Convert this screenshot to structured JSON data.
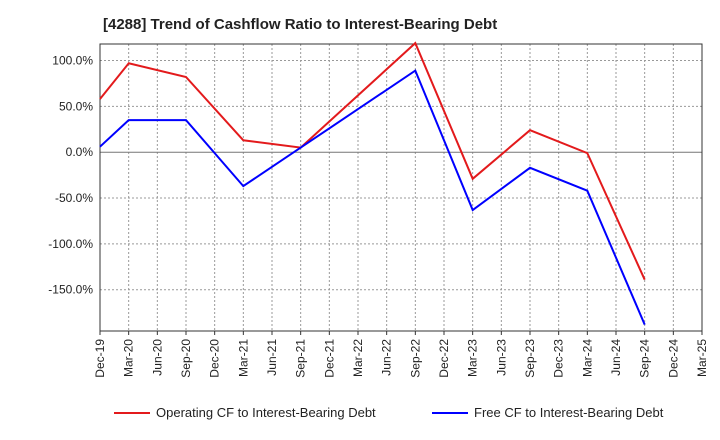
{
  "chart_data": {
    "type": "line",
    "title": "[4288]  Trend of Cashflow Ratio to Interest-Bearing Debt",
    "xlabel": "",
    "ylabel": "",
    "x": [
      "Dec-19",
      "Mar-20",
      "Jun-20",
      "Sep-20",
      "Dec-20",
      "Mar-21",
      "Jun-21",
      "Sep-21",
      "Dec-21",
      "Mar-22",
      "Jun-22",
      "Sep-22",
      "Dec-22",
      "Mar-23",
      "Jun-23",
      "Sep-23",
      "Dec-23",
      "Mar-24",
      "Jun-24",
      "Sep-24",
      "Dec-24",
      "Mar-25"
    ],
    "y_ticks": [
      "100.0%",
      "50.0%",
      "0.0%",
      "-50.0%",
      "-100.0%",
      "-150.0%"
    ],
    "y_tick_values": [
      100,
      50,
      0,
      -50,
      -100,
      -150
    ],
    "ylim": [
      -195,
      118
    ],
    "grid": true,
    "legend_position": "bottom",
    "series": [
      {
        "name": "Operating CF to Interest-Bearing Debt",
        "color": "#e31a1c",
        "points": [
          {
            "x": "Dec-19",
            "y": 58
          },
          {
            "x": "Mar-20",
            "y": 97
          },
          {
            "x": "Sep-20",
            "y": 82
          },
          {
            "x": "Mar-21",
            "y": 13
          },
          {
            "x": "Sep-21",
            "y": 5
          },
          {
            "x": "Sep-22",
            "y": 119
          },
          {
            "x": "Mar-23",
            "y": -29
          },
          {
            "x": "Sep-23",
            "y": 24
          },
          {
            "x": "Mar-24",
            "y": -1
          },
          {
            "x": "Sep-24",
            "y": -139
          }
        ]
      },
      {
        "name": "Free CF to Interest-Bearing Debt",
        "color": "#0000ff",
        "points": [
          {
            "x": "Dec-19",
            "y": 6
          },
          {
            "x": "Mar-20",
            "y": 35
          },
          {
            "x": "Sep-20",
            "y": 35
          },
          {
            "x": "Mar-21",
            "y": -37
          },
          {
            "x": "Sep-21",
            "y": 5
          },
          {
            "x": "Sep-22",
            "y": 89
          },
          {
            "x": "Mar-23",
            "y": -63
          },
          {
            "x": "Sep-23",
            "y": -17
          },
          {
            "x": "Mar-24",
            "y": -42
          },
          {
            "x": "Sep-24",
            "y": -188
          }
        ]
      }
    ]
  }
}
